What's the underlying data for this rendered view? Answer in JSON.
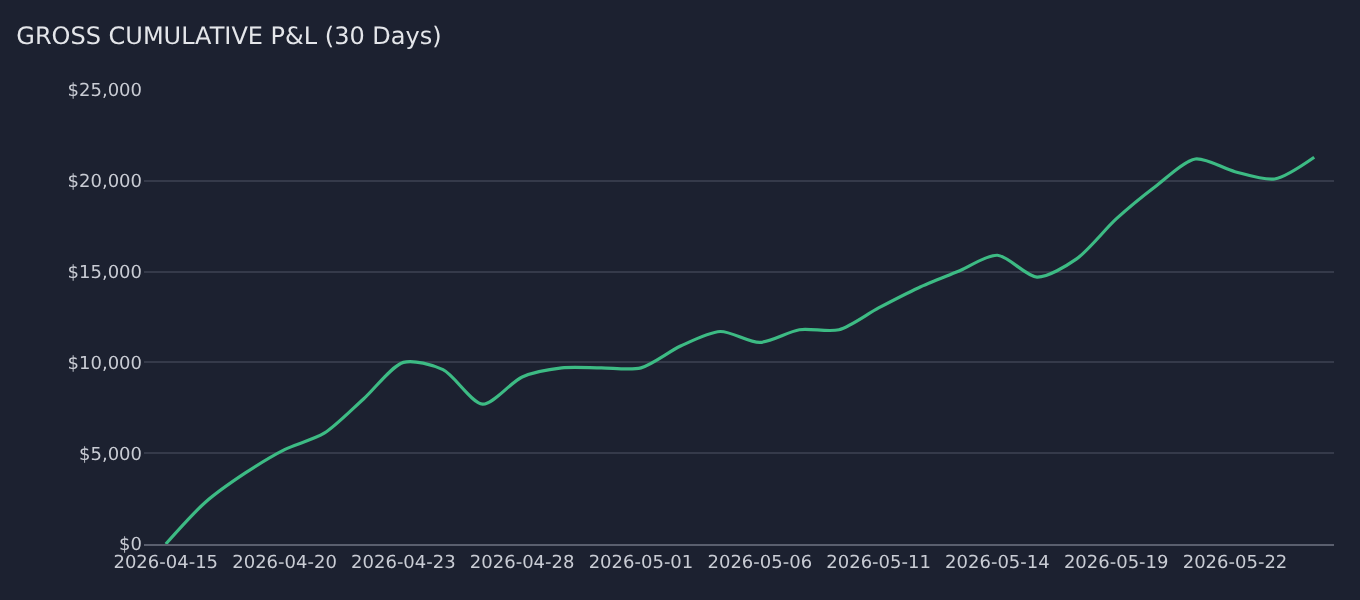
{
  "chart_data": {
    "type": "line",
    "title": "GROSS CUMULATIVE P&L (30 Days)",
    "categories": [
      "2026-04-15",
      null,
      null,
      "2026-04-20",
      null,
      null,
      "2026-04-23",
      null,
      null,
      "2026-04-28",
      null,
      null,
      "2026-05-01",
      null,
      null,
      "2026-05-06",
      null,
      null,
      "2026-05-11",
      null,
      null,
      "2026-05-14",
      null,
      null,
      "2026-05-19",
      null,
      null,
      "2026-05-22",
      null,
      null
    ],
    "series": [
      {
        "color": "#3dbb84",
        "values": [
          0,
          2300,
          3900,
          5200,
          6100,
          8000,
          10000,
          9600,
          7700,
          9200,
          9700,
          9700,
          9700,
          10900,
          11700,
          11100,
          11800,
          11800,
          13000,
          14100,
          15000,
          15900,
          14700,
          15700,
          17900,
          19700,
          21200,
          20500,
          20100,
          21300
        ]
      }
    ],
    "ylim": [
      0,
      25000
    ],
    "yticks": [
      {
        "value": 0,
        "label": "$0"
      },
      {
        "value": 5000,
        "label": "$5,000"
      },
      {
        "value": 10000,
        "label": "$10,000"
      },
      {
        "value": 15000,
        "label": "$15,000"
      },
      {
        "value": 20000,
        "label": "$20,000"
      },
      {
        "value": 25000,
        "label": "$25,000"
      }
    ],
    "grid": "y",
    "legend": false,
    "marker": "none",
    "line_style": "solid"
  }
}
